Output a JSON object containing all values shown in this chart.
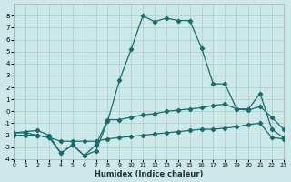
{
  "xlabel": "Humidex (Indice chaleur)",
  "bg_color": "#cce8e8",
  "grid_color": "#aacccc",
  "line_color": "#1a6b6b",
  "x_min": 0,
  "x_max": 23,
  "y_min": -4,
  "y_max": 9,
  "line_main_x": [
    0,
    1,
    2,
    3,
    4,
    5,
    6,
    7,
    8,
    9,
    10,
    11,
    12,
    13,
    14,
    15,
    16,
    17,
    18,
    19,
    20,
    21,
    22,
    23
  ],
  "line_main_y": [
    -2.0,
    -2.0,
    -2.0,
    -2.2,
    -3.5,
    -2.8,
    -3.7,
    -3.3,
    -0.8,
    2.6,
    5.2,
    8.0,
    7.5,
    7.8,
    7.6,
    7.6,
    5.3,
    2.3,
    2.3,
    0.2,
    0.2,
    1.5,
    -1.5,
    -2.2
  ],
  "line_mid_x": [
    0,
    1,
    2,
    3,
    4,
    5,
    6,
    7,
    8,
    9,
    10,
    11,
    12,
    13,
    14,
    15,
    16,
    17,
    18,
    19,
    20,
    21,
    22,
    23
  ],
  "line_mid_y": [
    -1.8,
    -1.7,
    -1.6,
    -2.0,
    -3.5,
    -2.8,
    -3.7,
    -2.8,
    -0.7,
    -0.7,
    -0.5,
    -0.3,
    -0.2,
    0.0,
    0.1,
    0.2,
    0.3,
    0.5,
    0.6,
    0.2,
    0.1,
    0.4,
    -0.5,
    -1.5
  ],
  "line_flat_x": [
    0,
    1,
    2,
    3,
    4,
    5,
    6,
    7,
    8,
    9,
    10,
    11,
    12,
    13,
    14,
    15,
    16,
    17,
    18,
    19,
    20,
    21,
    22,
    23
  ],
  "line_flat_y": [
    -1.8,
    -1.8,
    -2.0,
    -2.2,
    -2.5,
    -2.5,
    -2.5,
    -2.5,
    -2.3,
    -2.2,
    -2.1,
    -2.0,
    -1.9,
    -1.8,
    -1.7,
    -1.6,
    -1.5,
    -1.5,
    -1.4,
    -1.3,
    -1.1,
    -1.0,
    -2.2,
    -2.3
  ]
}
